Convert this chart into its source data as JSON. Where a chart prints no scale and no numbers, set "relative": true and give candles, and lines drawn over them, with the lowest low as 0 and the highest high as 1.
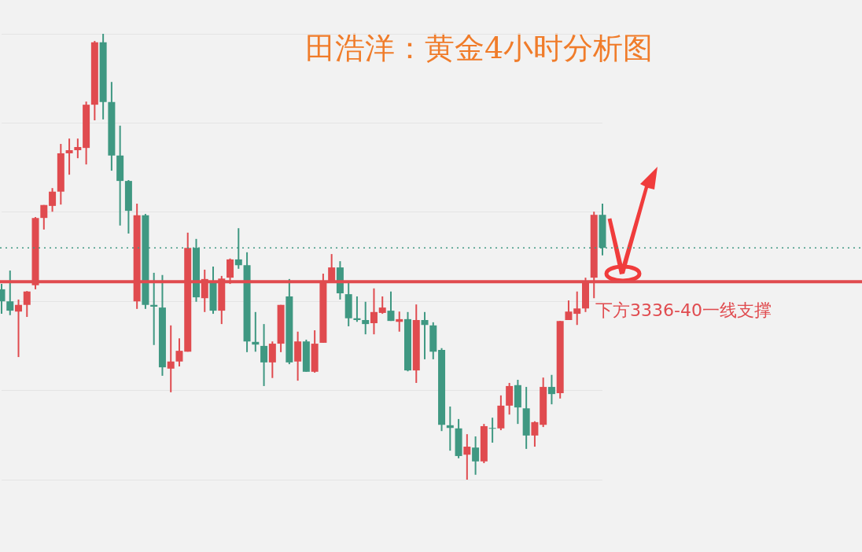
{
  "chart_data": {
    "type": "candlestick",
    "title": "田浩洋：黄金4小时分析图",
    "relative": true,
    "grid": "y",
    "categories": [
      null,
      null,
      null,
      null,
      null,
      null,
      null,
      null,
      null,
      null,
      null,
      null,
      null,
      null,
      null,
      null,
      null,
      null,
      null,
      null,
      null,
      null,
      null,
      null,
      null,
      null,
      null,
      null,
      null,
      null,
      null,
      null,
      null,
      null,
      null,
      null,
      null,
      null,
      null,
      null,
      null,
      null,
      null,
      null,
      null,
      null,
      null,
      null,
      null,
      null,
      null,
      null,
      null,
      null,
      null,
      null,
      null,
      null,
      null,
      null,
      null,
      null,
      null,
      null,
      null,
      null,
      null,
      null,
      null,
      null,
      null,
      null
    ],
    "ohlc": [
      [
        0.427,
        0.439,
        0.372,
        0.4
      ],
      [
        0.4,
        0.469,
        0.369,
        0.379
      ],
      [
        0.377,
        0.404,
        0.275,
        0.392
      ],
      [
        0.392,
        0.423,
        0.365,
        0.422
      ],
      [
        0.436,
        0.589,
        0.427,
        0.587
      ],
      [
        0.587,
        0.616,
        0.561,
        0.616
      ],
      [
        0.614,
        0.654,
        0.601,
        0.646
      ],
      [
        0.646,
        0.753,
        0.617,
        0.732
      ],
      [
        0.732,
        0.765,
        0.684,
        0.739
      ],
      [
        0.739,
        0.765,
        0.721,
        0.746
      ],
      [
        0.744,
        0.848,
        0.707,
        0.841
      ],
      [
        0.841,
        0.984,
        0.806,
        0.981
      ],
      [
        0.981,
        1,
        0.808,
        0.847
      ],
      [
        0.847,
        0.892,
        0.693,
        0.727
      ],
      [
        0.727,
        0.794,
        0.57,
        0.67
      ],
      [
        0.67,
        0.672,
        0.552,
        0.603
      ],
      [
        0.4,
        0.619,
        0.383,
        0.593
      ],
      [
        0.593,
        0.596,
        0.383,
        0.392
      ],
      [
        0.392,
        0.464,
        0.302,
        0.388
      ],
      [
        0.386,
        0.459,
        0.233,
        0.252
      ],
      [
        0.249,
        0.346,
        0.196,
        0.265
      ],
      [
        0.265,
        0.317,
        0.254,
        0.289
      ],
      [
        0.287,
        0.554,
        0.287,
        0.52
      ],
      [
        0.52,
        0.54,
        0.399,
        0.409
      ],
      [
        0.407,
        0.471,
        0.376,
        0.45
      ],
      [
        0.444,
        0.478,
        0.372,
        0.379
      ],
      [
        0.379,
        0.457,
        0.349,
        0.451
      ],
      [
        0.453,
        0.496,
        0.439,
        0.494
      ],
      [
        0.494,
        0.564,
        0.473,
        0.481
      ],
      [
        0.481,
        0.51,
        0.286,
        0.31
      ],
      [
        0.309,
        0.376,
        0.287,
        0.303
      ],
      [
        0.3,
        0.349,
        0.21,
        0.263
      ],
      [
        0.263,
        0.31,
        0.228,
        0.305
      ],
      [
        0.305,
        0.392,
        0.286,
        0.392
      ],
      [
        0.411,
        0.45,
        0.259,
        0.263
      ],
      [
        0.265,
        0.332,
        0.222,
        0.31
      ],
      [
        0.31,
        0.314,
        0.242,
        0.242
      ],
      [
        0.242,
        0.335,
        0.24,
        0.305
      ],
      [
        0.307,
        0.462,
        0.307,
        0.446
      ],
      [
        0.444,
        0.506,
        0.444,
        0.476
      ],
      [
        0.476,
        0.49,
        0.404,
        0.418
      ],
      [
        0.416,
        0.441,
        0.344,
        0.362
      ],
      [
        0.362,
        0.411,
        0.354,
        0.358
      ],
      [
        0.358,
        0.399,
        0.326,
        0.349
      ],
      [
        0.351,
        0.429,
        0.326,
        0.376
      ],
      [
        0.374,
        0.411,
        0.372,
        0.386
      ],
      [
        0.379,
        0.422,
        0.356,
        0.356
      ],
      [
        0.354,
        0.377,
        0.332,
        0.36
      ],
      [
        0.36,
        0.376,
        0.243,
        0.245
      ],
      [
        0.245,
        0.393,
        0.217,
        0.358
      ],
      [
        0.358,
        0.376,
        0.27,
        0.347
      ],
      [
        0.346,
        0.353,
        0.27,
        0.287
      ],
      [
        0.291,
        0.295,
        0.109,
        0.123
      ],
      [
        0.122,
        0.164,
        0.065,
        0.116
      ],
      [
        0.115,
        0.136,
        0.048,
        0.053
      ],
      [
        0.056,
        0.102,
        0,
        0.074
      ],
      [
        0.072,
        0.097,
        0.011,
        0.041
      ],
      [
        0.041,
        0.125,
        0.037,
        0.12
      ],
      [
        0.116,
        0.139,
        0.083,
        0.115
      ],
      [
        0.115,
        0.189,
        0.111,
        0.166
      ],
      [
        0.166,
        0.217,
        0.146,
        0.21
      ],
      [
        0.212,
        0.224,
        0.125,
        0.162
      ],
      [
        0.16,
        0.208,
        0.069,
        0.099
      ],
      [
        0.099,
        0.131,
        0.074,
        0.129
      ],
      [
        0.123,
        0.229,
        0.118,
        0.208
      ],
      [
        0.208,
        0.235,
        0.169,
        0.192
      ],
      [
        0.194,
        0.356,
        0.182,
        0.356
      ],
      [
        0.358,
        0.402,
        0.358,
        0.377
      ],
      [
        0.372,
        0.422,
        0.347,
        0.384
      ],
      [
        0.384,
        0.453,
        0.376,
        0.443
      ],
      [
        0.453,
        0.601,
        0.407,
        0.594
      ],
      [
        0.594,
        0.619,
        0.503,
        0.52
      ]
    ],
    "colors": [
      "#3f9882",
      "#3f9882",
      "#e04b4f",
      "#e04b4f",
      "#e04b4f",
      "#e04b4f",
      "#e04b4f",
      "#e04b4f",
      "#e04b4f",
      "#e04b4f",
      "#e04b4f",
      "#e04b4f",
      "#3f9882",
      "#3f9882",
      "#3f9882",
      "#3f9882",
      "#e04b4f",
      "#3f9882",
      "#3f9882",
      "#3f9882",
      "#e04b4f",
      "#e04b4f",
      "#e04b4f",
      "#3f9882",
      "#e04b4f",
      "#3f9882",
      "#e04b4f",
      "#e04b4f",
      "#3f9882",
      "#3f9882",
      "#3f9882",
      "#3f9882",
      "#e04b4f",
      "#e04b4f",
      "#3f9882",
      "#e04b4f",
      "#3f9882",
      "#e04b4f",
      "#e04b4f",
      "#e04b4f",
      "#3f9882",
      "#3f9882",
      "#3f9882",
      "#3f9882",
      "#e04b4f",
      "#e04b4f",
      "#3f9882",
      "#e04b4f",
      "#3f9882",
      "#e04b4f",
      "#3f9882",
      "#3f9882",
      "#3f9882",
      "#3f9882",
      "#3f9882",
      "#e04b4f",
      "#3f9882",
      "#e04b4f",
      "#3f9882",
      "#e04b4f",
      "#e04b4f",
      "#3f9882",
      "#3f9882",
      "#e04b4f",
      "#e04b4f",
      "#3f9882",
      "#e04b4f",
      "#e04b4f",
      "#e04b4f",
      "#e04b4f",
      "#e04b4f",
      "#3f9882"
    ],
    "ref_lines": [
      {
        "axis": "y",
        "value": 0.444,
        "label": "下方3336-40一线支撑",
        "color": "#e04b4f",
        "line_style": "solid"
      },
      {
        "axis": "y",
        "value": 0.52,
        "color": "#3f9882",
        "line_style": "dotted"
      }
    ]
  }
}
